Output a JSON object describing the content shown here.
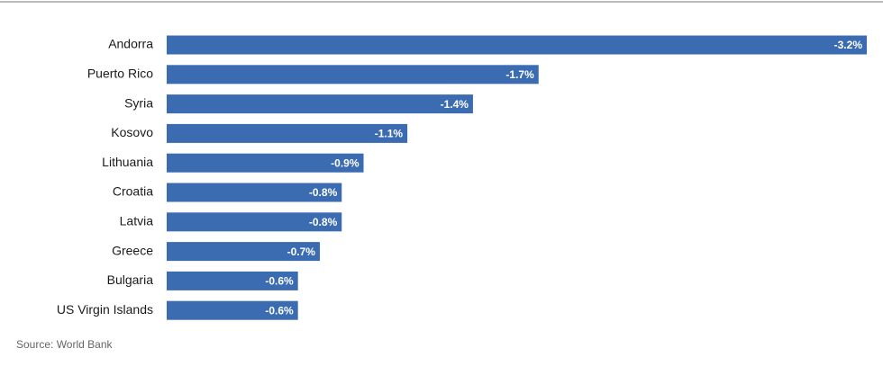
{
  "chart_data": {
    "type": "bar",
    "orientation": "horizontal",
    "categories": [
      "Andorra",
      "Puerto Rico",
      "Syria",
      "Kosovo",
      "Lithuania",
      "Croatia",
      "Latvia",
      "Greece",
      "Bulgaria",
      "US Virgin Islands"
    ],
    "values": [
      -3.2,
      -1.7,
      -1.4,
      -1.1,
      -0.9,
      -0.8,
      -0.8,
      -0.7,
      -0.6,
      -0.6
    ],
    "value_labels": [
      "-3.2%",
      "-1.7%",
      "-1.4%",
      "-1.1%",
      "-0.9%",
      "-0.8%",
      "-0.8%",
      "-0.7%",
      "-0.6%",
      "-0.6%"
    ],
    "color": "#3b6cb2",
    "source": "Source: World Bank"
  }
}
